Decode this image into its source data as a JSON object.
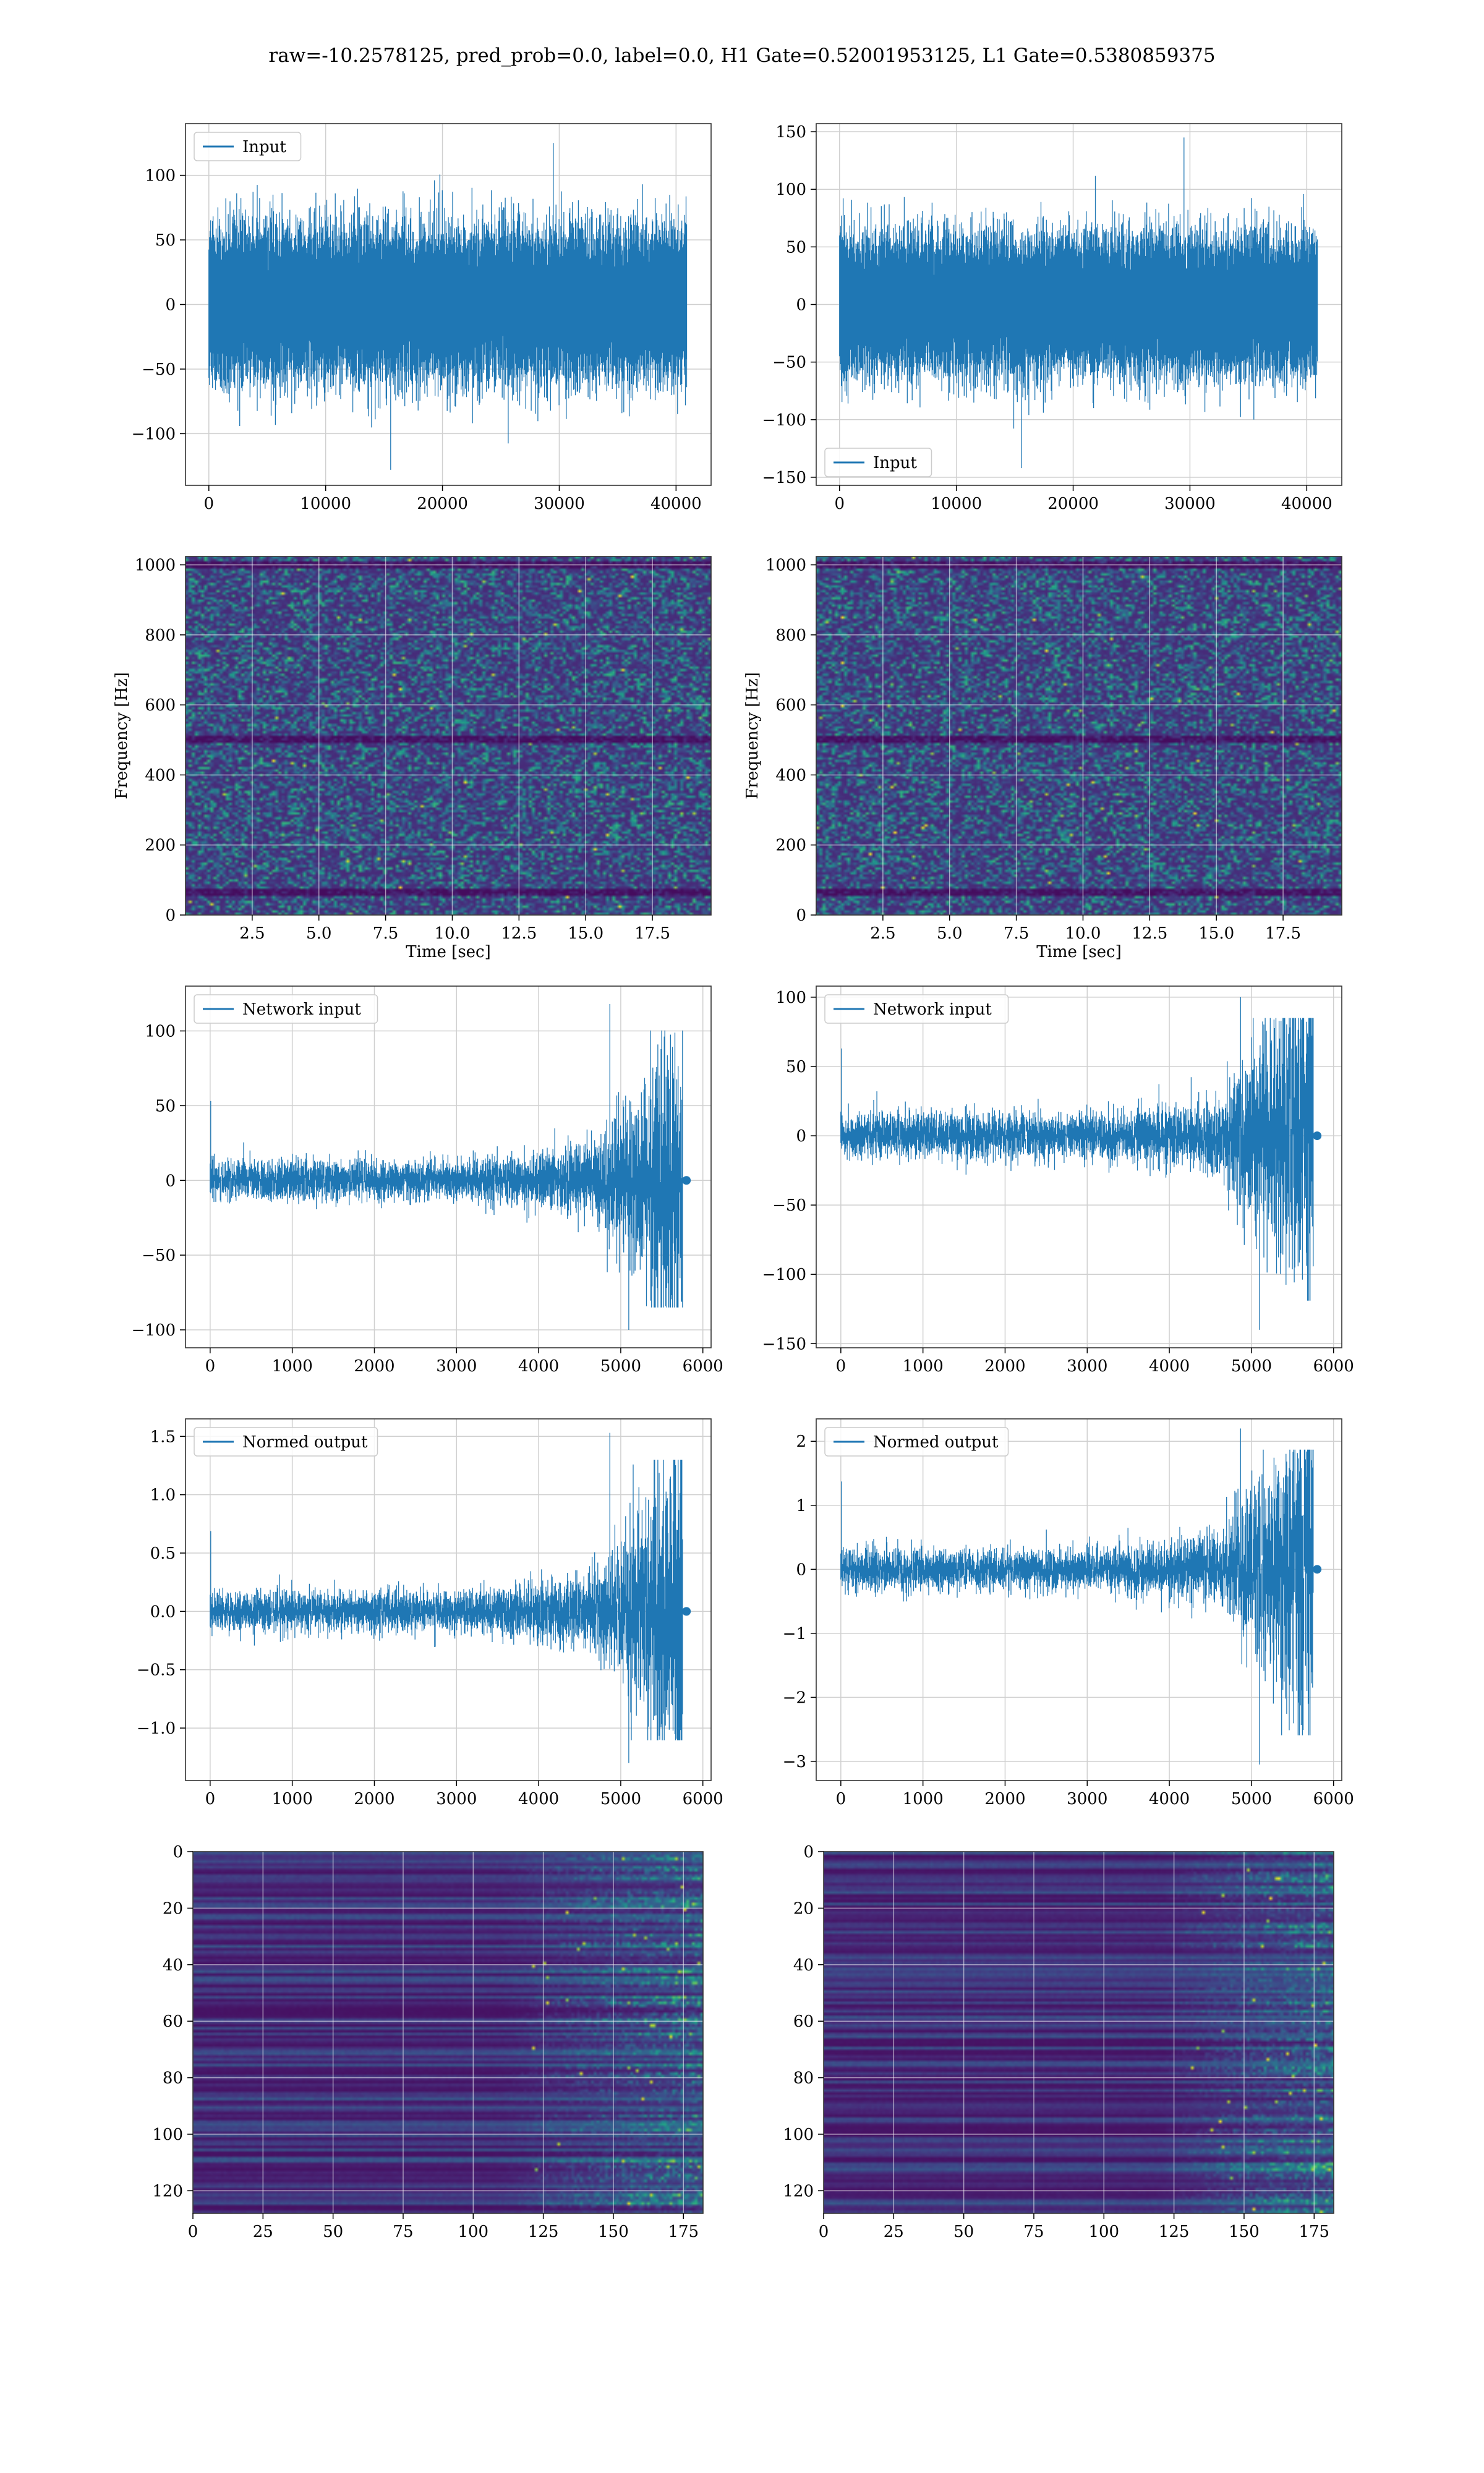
{
  "figure": {
    "title": "raw=-10.2578125, pred_prob=0.0, label=0.0, H1 Gate=0.52001953125, L1 Gate=0.5380859375",
    "colors": {
      "line": "#1f77b4",
      "grid": "#d0d0d0",
      "spine": "#333333",
      "viridis": [
        "#440154",
        "#482878",
        "#3e4989",
        "#31688e",
        "#26828e",
        "#1f9e89",
        "#35b779",
        "#6ece58",
        "#b5de2b",
        "#fde725"
      ]
    }
  },
  "chart_data": [
    {
      "id": "input-h1",
      "type": "line",
      "series": [
        {
          "name": "Input",
          "signal": "gaussian-noise",
          "n_samples": 40960,
          "std": 25,
          "peak_range": [
            -128,
            125
          ]
        }
      ],
      "legend": "top-left",
      "xlim": [
        -2000,
        43000
      ],
      "ylim": [
        -140,
        140
      ],
      "xticks": [
        0,
        10000,
        20000,
        30000,
        40000
      ],
      "xtick_labels": [
        "0",
        "10000",
        "20000",
        "30000",
        "40000"
      ],
      "yticks": [
        -100,
        -50,
        0,
        50,
        100
      ],
      "ytick_labels": [
        "−100",
        "−50",
        "0",
        "50",
        "100"
      ],
      "grid": true
    },
    {
      "id": "input-l1",
      "type": "line",
      "series": [
        {
          "name": "Input",
          "signal": "gaussian-noise",
          "n_samples": 40960,
          "std": 26,
          "peak_range": [
            -142,
            145
          ]
        }
      ],
      "legend": "bottom-left",
      "xlim": [
        -2000,
        43000
      ],
      "ylim": [
        -157,
        157
      ],
      "xticks": [
        0,
        10000,
        20000,
        30000,
        40000
      ],
      "xtick_labels": [
        "0",
        "10000",
        "20000",
        "30000",
        "40000"
      ],
      "yticks": [
        -150,
        -100,
        -50,
        0,
        50,
        100,
        150
      ],
      "ytick_labels": [
        "−150",
        "−100",
        "−50",
        "0",
        "50",
        "100",
        "150"
      ],
      "grid": true
    },
    {
      "id": "spectrogram-h1",
      "type": "heatmap",
      "xlabel": "Time [sec]",
      "ylabel": "Frequency [Hz]",
      "xlim": [
        0,
        19.7
      ],
      "ylim": [
        0,
        1024
      ],
      "xticks": [
        2.5,
        5.0,
        7.5,
        10.0,
        12.5,
        15.0,
        17.5
      ],
      "xtick_labels": [
        "2.5",
        "5.0",
        "7.5",
        "10.0",
        "12.5",
        "15.0",
        "17.5"
      ],
      "yticks": [
        0,
        200,
        400,
        600,
        800,
        1000
      ],
      "ytick_labels": [
        "0",
        "200",
        "400",
        "600",
        "800",
        "1000"
      ],
      "colormap": "viridis",
      "grid": true,
      "dark_bands_hz": [
        60,
        500,
        1000
      ]
    },
    {
      "id": "spectrogram-l1",
      "type": "heatmap",
      "xlabel": "Time [sec]",
      "ylabel": "Frequency [Hz]",
      "xlim": [
        0,
        19.7
      ],
      "ylim": [
        0,
        1024
      ],
      "xticks": [
        2.5,
        5.0,
        7.5,
        10.0,
        12.5,
        15.0,
        17.5
      ],
      "xtick_labels": [
        "2.5",
        "5.0",
        "7.5",
        "10.0",
        "12.5",
        "15.0",
        "17.5"
      ],
      "yticks": [
        0,
        200,
        400,
        600,
        800,
        1000
      ],
      "ytick_labels": [
        "0",
        "200",
        "400",
        "600",
        "800",
        "1000"
      ],
      "colormap": "viridis",
      "grid": true,
      "dark_bands_hz": [
        60,
        500,
        1000
      ]
    },
    {
      "id": "network-input-h1",
      "type": "line",
      "series": [
        {
          "name": "Network input",
          "signal": "whitened-chirp",
          "n_samples": 5760,
          "base_std": 6.5,
          "peak_range": [
            -100,
            118
          ],
          "end_x": 5760
        }
      ],
      "legend": "top-left",
      "xlim": [
        -300,
        6100
      ],
      "ylim": [
        -112,
        130
      ],
      "xticks": [
        0,
        1000,
        2000,
        3000,
        4000,
        5000,
        6000
      ],
      "xtick_labels": [
        "0",
        "1000",
        "2000",
        "3000",
        "4000",
        "5000",
        "6000"
      ],
      "yticks": [
        -100,
        -50,
        0,
        50,
        100
      ],
      "ytick_labels": [
        "−100",
        "−50",
        "0",
        "50",
        "100"
      ],
      "grid": true
    },
    {
      "id": "network-input-l1",
      "type": "line",
      "series": [
        {
          "name": "Network input",
          "signal": "whitened-chirp",
          "n_samples": 5760,
          "base_std": 8,
          "peak_range": [
            -140,
            100
          ],
          "end_x": 5760
        }
      ],
      "legend": "top-left",
      "xlim": [
        -300,
        6100
      ],
      "ylim": [
        -153,
        108
      ],
      "xticks": [
        0,
        1000,
        2000,
        3000,
        4000,
        5000,
        6000
      ],
      "xtick_labels": [
        "0",
        "1000",
        "2000",
        "3000",
        "4000",
        "5000",
        "6000"
      ],
      "yticks": [
        -150,
        -100,
        -50,
        0,
        50,
        100
      ],
      "ytick_labels": [
        "−150",
        "−100",
        "−50",
        "0",
        "50",
        "100"
      ],
      "grid": true
    },
    {
      "id": "normed-output-h1",
      "type": "line",
      "series": [
        {
          "name": "Normed output",
          "signal": "whitened-chirp",
          "n_samples": 5760,
          "base_std": 0.085,
          "peak_range": [
            -1.3,
            1.53
          ],
          "end_x": 5760
        }
      ],
      "legend": "top-left",
      "xlim": [
        -300,
        6100
      ],
      "ylim": [
        -1.45,
        1.65
      ],
      "xticks": [
        0,
        1000,
        2000,
        3000,
        4000,
        5000,
        6000
      ],
      "xtick_labels": [
        "0",
        "1000",
        "2000",
        "3000",
        "4000",
        "5000",
        "6000"
      ],
      "yticks": [
        -1.0,
        -0.5,
        0.0,
        0.5,
        1.0,
        1.5
      ],
      "ytick_labels": [
        "−1.0",
        "−0.5",
        "0.0",
        "0.5",
        "1.0",
        "1.5"
      ],
      "grid": true
    },
    {
      "id": "normed-output-l1",
      "type": "line",
      "series": [
        {
          "name": "Normed output",
          "signal": "whitened-chirp",
          "n_samples": 5760,
          "base_std": 0.16,
          "peak_range": [
            -3.05,
            2.2
          ],
          "end_x": 5760
        }
      ],
      "legend": "top-left",
      "xlim": [
        -300,
        6100
      ],
      "ylim": [
        -3.3,
        2.35
      ],
      "xticks": [
        0,
        1000,
        2000,
        3000,
        4000,
        5000,
        6000
      ],
      "xtick_labels": [
        "0",
        "1000",
        "2000",
        "3000",
        "4000",
        "5000",
        "6000"
      ],
      "yticks": [
        -3,
        -2,
        -1,
        0,
        1,
        2
      ],
      "ytick_labels": [
        "−3",
        "−2",
        "−1",
        "0",
        "1",
        "2"
      ],
      "grid": true
    },
    {
      "id": "feature-map-h1",
      "type": "heatmap",
      "xlim": [
        0,
        182
      ],
      "ylim": [
        128,
        0
      ],
      "xticks": [
        0,
        25,
        50,
        75,
        100,
        125,
        150,
        175
      ],
      "xtick_labels": [
        "0",
        "25",
        "50",
        "75",
        "100",
        "125",
        "150",
        "175"
      ],
      "yticks": [
        0,
        20,
        40,
        60,
        80,
        100,
        120
      ],
      "ytick_labels": [
        "0",
        "20",
        "40",
        "60",
        "80",
        "100",
        "120"
      ],
      "colormap": "viridis",
      "grid": true,
      "rows": 128,
      "cols": 182,
      "onset_col": 110
    },
    {
      "id": "feature-map-l1",
      "type": "heatmap",
      "xlim": [
        0,
        182
      ],
      "ylim": [
        128,
        0
      ],
      "xticks": [
        0,
        25,
        50,
        75,
        100,
        125,
        150,
        175
      ],
      "xtick_labels": [
        "0",
        "25",
        "50",
        "75",
        "100",
        "125",
        "150",
        "175"
      ],
      "yticks": [
        0,
        20,
        40,
        60,
        80,
        100,
        120
      ],
      "ytick_labels": [
        "0",
        "20",
        "40",
        "60",
        "80",
        "100",
        "120"
      ],
      "colormap": "viridis",
      "grid": true,
      "rows": 128,
      "cols": 182,
      "onset_col": 120
    }
  ]
}
